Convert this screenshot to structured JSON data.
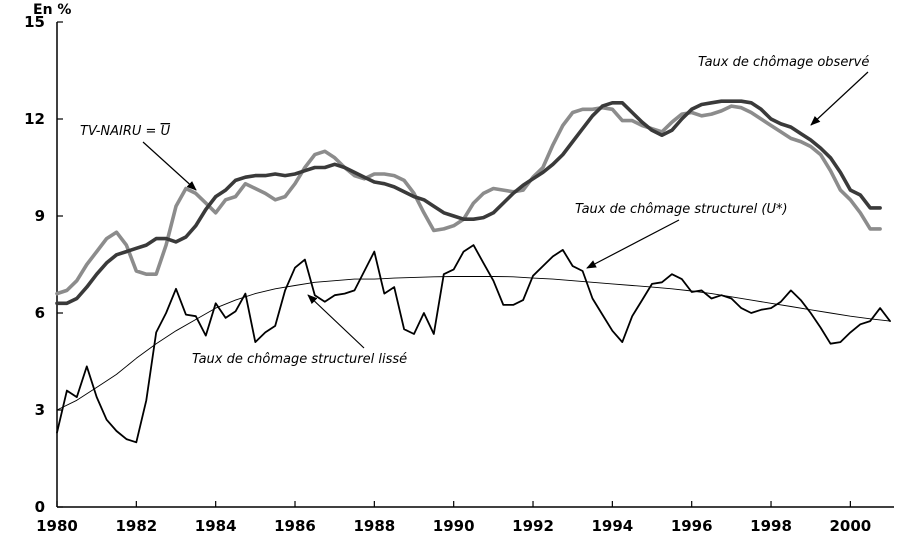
{
  "chart_data": {
    "type": "line",
    "unit_label": "En %",
    "xlim": [
      1980,
      2001.1
    ],
    "ylim": [
      0,
      15
    ],
    "x_ticks": [
      "1980",
      "1982",
      "1984",
      "1986",
      "1988",
      "1990",
      "1992",
      "1994",
      "1996",
      "1998",
      "2000"
    ],
    "y_ticks": [
      "0",
      "3",
      "6",
      "9",
      "12",
      "15"
    ],
    "grid": false,
    "series": [
      {
        "key": "observed",
        "color": "#8c8c8c",
        "points": [
          [
            1980,
            6.6
          ],
          [
            1980.25,
            6.7
          ],
          [
            1980.5,
            7.0
          ],
          [
            1980.75,
            7.5
          ],
          [
            1981,
            7.9
          ],
          [
            1981.25,
            8.3
          ],
          [
            1981.5,
            8.5
          ],
          [
            1981.75,
            8.1
          ],
          [
            1982,
            7.3
          ],
          [
            1982.25,
            7.2
          ],
          [
            1982.5,
            7.2
          ],
          [
            1982.75,
            8.1
          ],
          [
            1983,
            9.3
          ],
          [
            1983.25,
            9.85
          ],
          [
            1983.5,
            9.7
          ],
          [
            1983.75,
            9.4
          ],
          [
            1984,
            9.1
          ],
          [
            1984.25,
            9.5
          ],
          [
            1984.5,
            9.6
          ],
          [
            1984.75,
            10.0
          ],
          [
            1985,
            9.85
          ],
          [
            1985.25,
            9.7
          ],
          [
            1985.5,
            9.5
          ],
          [
            1985.75,
            9.6
          ],
          [
            1986,
            10.0
          ],
          [
            1986.25,
            10.5
          ],
          [
            1986.5,
            10.9
          ],
          [
            1986.75,
            11.0
          ],
          [
            1987,
            10.8
          ],
          [
            1987.25,
            10.5
          ],
          [
            1987.5,
            10.25
          ],
          [
            1987.75,
            10.15
          ],
          [
            1988,
            10.3
          ],
          [
            1988.25,
            10.3
          ],
          [
            1988.5,
            10.25
          ],
          [
            1988.75,
            10.1
          ],
          [
            1989,
            9.7
          ],
          [
            1989.25,
            9.1
          ],
          [
            1989.5,
            8.55
          ],
          [
            1989.75,
            8.6
          ],
          [
            1990,
            8.7
          ],
          [
            1990.25,
            8.9
          ],
          [
            1990.5,
            9.4
          ],
          [
            1990.75,
            9.7
          ],
          [
            1991,
            9.85
          ],
          [
            1991.25,
            9.8
          ],
          [
            1991.5,
            9.75
          ],
          [
            1991.75,
            9.8
          ],
          [
            1992,
            10.2
          ],
          [
            1992.25,
            10.5
          ],
          [
            1992.5,
            11.2
          ],
          [
            1992.75,
            11.8
          ],
          [
            1993,
            12.2
          ],
          [
            1993.25,
            12.3
          ],
          [
            1993.5,
            12.3
          ],
          [
            1993.75,
            12.35
          ],
          [
            1994,
            12.3
          ],
          [
            1994.25,
            11.95
          ],
          [
            1994.5,
            11.95
          ],
          [
            1994.75,
            11.8
          ],
          [
            1995,
            11.7
          ],
          [
            1995.25,
            11.6
          ],
          [
            1995.5,
            11.9
          ],
          [
            1995.75,
            12.15
          ],
          [
            1996,
            12.2
          ],
          [
            1996.25,
            12.1
          ],
          [
            1996.5,
            12.15
          ],
          [
            1996.75,
            12.25
          ],
          [
            1997,
            12.4
          ],
          [
            1997.25,
            12.35
          ],
          [
            1997.5,
            12.2
          ],
          [
            1997.75,
            12.0
          ],
          [
            1998,
            11.8
          ],
          [
            1998.25,
            11.6
          ],
          [
            1998.5,
            11.4
          ],
          [
            1998.75,
            11.3
          ],
          [
            1999,
            11.15
          ],
          [
            1999.25,
            10.9
          ],
          [
            1999.5,
            10.4
          ],
          [
            1999.75,
            9.8
          ],
          [
            2000,
            9.5
          ],
          [
            2000.25,
            9.1
          ],
          [
            2000.5,
            8.6
          ],
          [
            2000.75,
            8.6
          ]
        ]
      },
      {
        "key": "nairu",
        "color": "#3a3a3a",
        "points": [
          [
            1980,
            6.3
          ],
          [
            1980.25,
            6.3
          ],
          [
            1980.5,
            6.45
          ],
          [
            1980.75,
            6.8
          ],
          [
            1981,
            7.2
          ],
          [
            1981.25,
            7.55
          ],
          [
            1981.5,
            7.8
          ],
          [
            1981.75,
            7.9
          ],
          [
            1982,
            8.0
          ],
          [
            1982.25,
            8.1
          ],
          [
            1982.5,
            8.3
          ],
          [
            1982.75,
            8.3
          ],
          [
            1983,
            8.2
          ],
          [
            1983.25,
            8.35
          ],
          [
            1983.5,
            8.7
          ],
          [
            1983.75,
            9.2
          ],
          [
            1984,
            9.6
          ],
          [
            1984.25,
            9.8
          ],
          [
            1984.5,
            10.1
          ],
          [
            1984.75,
            10.2
          ],
          [
            1985,
            10.25
          ],
          [
            1985.25,
            10.25
          ],
          [
            1985.5,
            10.3
          ],
          [
            1985.75,
            10.25
          ],
          [
            1986,
            10.3
          ],
          [
            1986.25,
            10.4
          ],
          [
            1986.5,
            10.5
          ],
          [
            1986.75,
            10.5
          ],
          [
            1987,
            10.6
          ],
          [
            1987.25,
            10.5
          ],
          [
            1987.5,
            10.35
          ],
          [
            1987.75,
            10.2
          ],
          [
            1988,
            10.05
          ],
          [
            1988.25,
            10.0
          ],
          [
            1988.5,
            9.9
          ],
          [
            1988.75,
            9.75
          ],
          [
            1989,
            9.6
          ],
          [
            1989.25,
            9.5
          ],
          [
            1989.5,
            9.3
          ],
          [
            1989.75,
            9.1
          ],
          [
            1990,
            9.0
          ],
          [
            1990.25,
            8.9
          ],
          [
            1990.5,
            8.9
          ],
          [
            1990.75,
            8.95
          ],
          [
            1991,
            9.1
          ],
          [
            1991.25,
            9.4
          ],
          [
            1991.5,
            9.7
          ],
          [
            1991.75,
            9.95
          ],
          [
            1992,
            10.15
          ],
          [
            1992.25,
            10.35
          ],
          [
            1992.5,
            10.6
          ],
          [
            1992.75,
            10.9
          ],
          [
            1993,
            11.3
          ],
          [
            1993.25,
            11.7
          ],
          [
            1993.5,
            12.1
          ],
          [
            1993.75,
            12.4
          ],
          [
            1994,
            12.5
          ],
          [
            1994.25,
            12.5
          ],
          [
            1994.5,
            12.2
          ],
          [
            1994.75,
            11.9
          ],
          [
            1995,
            11.65
          ],
          [
            1995.25,
            11.5
          ],
          [
            1995.5,
            11.65
          ],
          [
            1995.75,
            12.0
          ],
          [
            1996,
            12.3
          ],
          [
            1996.25,
            12.45
          ],
          [
            1996.5,
            12.5
          ],
          [
            1996.75,
            12.55
          ],
          [
            1997,
            12.55
          ],
          [
            1997.25,
            12.55
          ],
          [
            1997.5,
            12.5
          ],
          [
            1997.75,
            12.3
          ],
          [
            1998,
            12.0
          ],
          [
            1998.25,
            11.85
          ],
          [
            1998.5,
            11.75
          ],
          [
            1998.75,
            11.55
          ],
          [
            1999,
            11.35
          ],
          [
            1999.25,
            11.1
          ],
          [
            1999.5,
            10.8
          ],
          [
            1999.75,
            10.35
          ],
          [
            2000,
            9.8
          ],
          [
            2000.25,
            9.65
          ],
          [
            2000.5,
            9.25
          ],
          [
            2000.75,
            9.25
          ]
        ]
      },
      {
        "key": "structural",
        "color": "#000000",
        "points": [
          [
            1980,
            2.3
          ],
          [
            1980.25,
            3.6
          ],
          [
            1980.5,
            3.4
          ],
          [
            1980.75,
            4.35
          ],
          [
            1981,
            3.4
          ],
          [
            1981.25,
            2.7
          ],
          [
            1981.5,
            2.35
          ],
          [
            1981.75,
            2.1
          ],
          [
            1982,
            2.0
          ],
          [
            1982.25,
            3.3
          ],
          [
            1982.5,
            5.4
          ],
          [
            1982.75,
            6.0
          ],
          [
            1983,
            6.75
          ],
          [
            1983.25,
            5.95
          ],
          [
            1983.5,
            5.9
          ],
          [
            1983.75,
            5.3
          ],
          [
            1984,
            6.3
          ],
          [
            1984.25,
            5.85
          ],
          [
            1984.5,
            6.05
          ],
          [
            1984.75,
            6.6
          ],
          [
            1985,
            5.1
          ],
          [
            1985.25,
            5.4
          ],
          [
            1985.5,
            5.6
          ],
          [
            1985.75,
            6.7
          ],
          [
            1986,
            7.4
          ],
          [
            1986.25,
            7.65
          ],
          [
            1986.5,
            6.55
          ],
          [
            1986.75,
            6.35
          ],
          [
            1987,
            6.55
          ],
          [
            1987.25,
            6.6
          ],
          [
            1987.5,
            6.7
          ],
          [
            1987.75,
            7.3
          ],
          [
            1988,
            7.9
          ],
          [
            1988.25,
            6.6
          ],
          [
            1988.5,
            6.8
          ],
          [
            1988.75,
            5.5
          ],
          [
            1989,
            5.35
          ],
          [
            1989.25,
            6.0
          ],
          [
            1989.5,
            5.35
          ],
          [
            1989.75,
            7.2
          ],
          [
            1990,
            7.35
          ],
          [
            1990.25,
            7.9
          ],
          [
            1990.5,
            8.1
          ],
          [
            1990.75,
            7.55
          ],
          [
            1991,
            7.0
          ],
          [
            1991.25,
            6.25
          ],
          [
            1991.5,
            6.25
          ],
          [
            1991.75,
            6.4
          ],
          [
            1992,
            7.15
          ],
          [
            1992.25,
            7.45
          ],
          [
            1992.5,
            7.75
          ],
          [
            1992.75,
            7.95
          ],
          [
            1993,
            7.45
          ],
          [
            1993.25,
            7.3
          ],
          [
            1993.5,
            6.45
          ],
          [
            1993.75,
            5.95
          ],
          [
            1994,
            5.45
          ],
          [
            1994.25,
            5.1
          ],
          [
            1994.5,
            5.9
          ],
          [
            1994.75,
            6.4
          ],
          [
            1995,
            6.9
          ],
          [
            1995.25,
            6.95
          ],
          [
            1995.5,
            7.2
          ],
          [
            1995.75,
            7.05
          ],
          [
            1996,
            6.65
          ],
          [
            1996.25,
            6.7
          ],
          [
            1996.5,
            6.45
          ],
          [
            1996.75,
            6.55
          ],
          [
            1997,
            6.45
          ],
          [
            1997.25,
            6.15
          ],
          [
            1997.5,
            6.0
          ],
          [
            1997.75,
            6.1
          ],
          [
            1998,
            6.15
          ],
          [
            1998.25,
            6.35
          ],
          [
            1998.5,
            6.7
          ],
          [
            1998.75,
            6.4
          ],
          [
            1999,
            6.0
          ],
          [
            1999.25,
            5.55
          ],
          [
            1999.5,
            5.05
          ],
          [
            1999.75,
            5.1
          ],
          [
            2000,
            5.4
          ],
          [
            2000.25,
            5.65
          ],
          [
            2000.5,
            5.75
          ],
          [
            2000.75,
            6.15
          ],
          [
            2001,
            5.75
          ]
        ]
      },
      {
        "key": "smoothed",
        "color": "#000000",
        "points": [
          [
            1980,
            3.0
          ],
          [
            1980.5,
            3.3
          ],
          [
            1981,
            3.7
          ],
          [
            1981.5,
            4.1
          ],
          [
            1982,
            4.6
          ],
          [
            1982.5,
            5.05
          ],
          [
            1983,
            5.45
          ],
          [
            1983.5,
            5.8
          ],
          [
            1984,
            6.15
          ],
          [
            1984.5,
            6.4
          ],
          [
            1985,
            6.6
          ],
          [
            1985.5,
            6.75
          ],
          [
            1986,
            6.85
          ],
          [
            1986.5,
            6.95
          ],
          [
            1987,
            7.0
          ],
          [
            1987.5,
            7.05
          ],
          [
            1988,
            7.05
          ],
          [
            1988.5,
            7.08
          ],
          [
            1989,
            7.1
          ],
          [
            1989.5,
            7.12
          ],
          [
            1990,
            7.13
          ],
          [
            1990.5,
            7.13
          ],
          [
            1991,
            7.13
          ],
          [
            1991.5,
            7.12
          ],
          [
            1992,
            7.08
          ],
          [
            1992.5,
            7.05
          ],
          [
            1993,
            7.0
          ],
          [
            1993.5,
            6.95
          ],
          [
            1994,
            6.9
          ],
          [
            1994.5,
            6.85
          ],
          [
            1995,
            6.8
          ],
          [
            1995.5,
            6.75
          ],
          [
            1996,
            6.68
          ],
          [
            1996.5,
            6.6
          ],
          [
            1997,
            6.5
          ],
          [
            1997.5,
            6.4
          ],
          [
            1998,
            6.3
          ],
          [
            1998.5,
            6.2
          ],
          [
            1999,
            6.1
          ],
          [
            1999.5,
            6.0
          ],
          [
            2000,
            5.9
          ],
          [
            2000.5,
            5.82
          ],
          [
            2001,
            5.75
          ]
        ]
      }
    ],
    "annotations": {
      "observed": "Taux de chômage observé",
      "nairu_prefix": "TV-NAIRU = ",
      "nairu_symbol": "U",
      "structural": "Taux de chômage structurel (U*)",
      "smoothed": "Taux de chômage structurel lissé"
    }
  }
}
